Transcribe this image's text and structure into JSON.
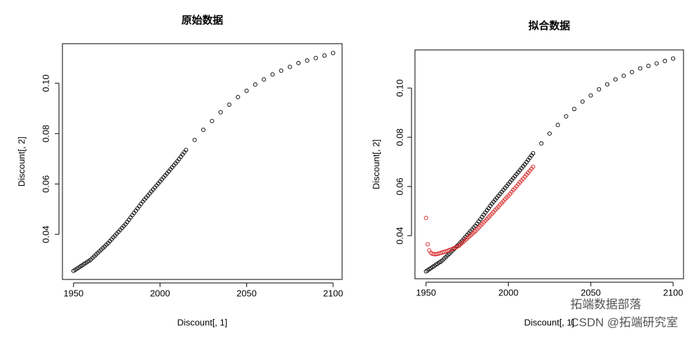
{
  "chart_data": [
    {
      "type": "scatter",
      "title": "原始数据",
      "x_label": "Discount[, 1]",
      "y_label": "Discount[, 2]",
      "xlim": [
        1943.6,
        2105.2
      ],
      "ylim": [
        0.0221,
        0.1157
      ],
      "xticks": [
        1950,
        2000,
        2050,
        2100
      ],
      "yticks": [
        0.04,
        0.06,
        0.08,
        {
          "value": 0.1,
          "label": "0.10"
        }
      ],
      "series": [
        {
          "color": "#000000",
          "x": [
            1950,
            1951,
            1952,
            1953,
            1954,
            1955,
            1956,
            1957,
            1958,
            1959,
            1960,
            1961,
            1962,
            1963,
            1964,
            1965,
            1966,
            1967,
            1968,
            1969,
            1970,
            1971,
            1972,
            1973,
            1974,
            1975,
            1976,
            1977,
            1978,
            1979,
            1980,
            1981,
            1982,
            1983,
            1984,
            1985,
            1986,
            1987,
            1988,
            1989,
            1990,
            1991,
            1992,
            1993,
            1994,
            1995,
            1996,
            1997,
            1998,
            1999,
            2000,
            2001,
            2002,
            2003,
            2004,
            2005,
            2006,
            2007,
            2008,
            2009,
            2010,
            2011,
            2012,
            2013,
            2014,
            2015,
            2020,
            2025,
            2030,
            2035,
            2040,
            2045,
            2050,
            2055,
            2060,
            2065,
            2070,
            2075,
            2080,
            2085,
            2090,
            2095,
            2100
          ],
          "values": [
            0.0255,
            0.0259,
            0.0264,
            0.0268,
            0.0273,
            0.0277,
            0.0282,
            0.0286,
            0.0291,
            0.0295,
            0.03,
            0.0307,
            0.0313,
            0.032,
            0.0326,
            0.0333,
            0.0339,
            0.0346,
            0.0352,
            0.0359,
            0.0365,
            0.0373,
            0.038,
            0.0388,
            0.0395,
            0.0403,
            0.041,
            0.0418,
            0.0425,
            0.0433,
            0.044,
            0.0449,
            0.0458,
            0.0467,
            0.0476,
            0.0485,
            0.0494,
            0.0503,
            0.0512,
            0.0521,
            0.053,
            0.0538,
            0.0546,
            0.0554,
            0.0562,
            0.057,
            0.0578,
            0.0586,
            0.0594,
            0.0602,
            0.061,
            0.0618,
            0.0626,
            0.0634,
            0.0642,
            0.065,
            0.0658,
            0.0666,
            0.0674,
            0.0682,
            0.069,
            0.0699,
            0.0708,
            0.0717,
            0.0726,
            0.0735,
            0.0775,
            0.0815,
            0.085,
            0.0885,
            0.0915,
            0.0945,
            0.097,
            0.0995,
            0.1015,
            0.1035,
            0.105,
            0.1065,
            0.108,
            0.109,
            0.11,
            0.111,
            0.112
          ]
        }
      ]
    },
    {
      "type": "scatter",
      "title": "拟合数据",
      "x_label": "Discount[, 1]",
      "y_label": "Discount[, 2]",
      "xlim": [
        1943.3,
        2106.3
      ],
      "ylim": [
        0.0225,
        0.1155
      ],
      "xticks": [
        1950,
        2000,
        2050,
        2100
      ],
      "yticks": [
        0.04,
        0.06,
        0.08,
        {
          "value": 0.1,
          "label": "0.10"
        }
      ],
      "series": [
        {
          "color": "#000000",
          "x": [
            1950,
            1951,
            1952,
            1953,
            1954,
            1955,
            1956,
            1957,
            1958,
            1959,
            1960,
            1961,
            1962,
            1963,
            1964,
            1965,
            1966,
            1967,
            1968,
            1969,
            1970,
            1971,
            1972,
            1973,
            1974,
            1975,
            1976,
            1977,
            1978,
            1979,
            1980,
            1981,
            1982,
            1983,
            1984,
            1985,
            1986,
            1987,
            1988,
            1989,
            1990,
            1991,
            1992,
            1993,
            1994,
            1995,
            1996,
            1997,
            1998,
            1999,
            2000,
            2001,
            2002,
            2003,
            2004,
            2005,
            2006,
            2007,
            2008,
            2009,
            2010,
            2011,
            2012,
            2013,
            2014,
            2015,
            2020,
            2025,
            2030,
            2035,
            2040,
            2045,
            2050,
            2055,
            2060,
            2065,
            2070,
            2075,
            2080,
            2085,
            2090,
            2095,
            2100
          ],
          "values": [
            0.0255,
            0.0259,
            0.0264,
            0.0268,
            0.0273,
            0.0277,
            0.0282,
            0.0286,
            0.0291,
            0.0295,
            0.03,
            0.0307,
            0.0313,
            0.032,
            0.0326,
            0.0333,
            0.0339,
            0.0346,
            0.0352,
            0.0359,
            0.0365,
            0.0373,
            0.038,
            0.0388,
            0.0395,
            0.0403,
            0.041,
            0.0418,
            0.0425,
            0.0433,
            0.044,
            0.0449,
            0.0458,
            0.0467,
            0.0476,
            0.0485,
            0.0494,
            0.0503,
            0.0512,
            0.0521,
            0.053,
            0.0538,
            0.0546,
            0.0554,
            0.0562,
            0.057,
            0.0578,
            0.0586,
            0.0594,
            0.0602,
            0.061,
            0.0618,
            0.0626,
            0.0634,
            0.0642,
            0.065,
            0.0658,
            0.0666,
            0.0674,
            0.0682,
            0.069,
            0.0699,
            0.0708,
            0.0717,
            0.0726,
            0.0735,
            0.0775,
            0.0815,
            0.085,
            0.0885,
            0.0915,
            0.0945,
            0.097,
            0.0995,
            0.1015,
            0.1035,
            0.105,
            0.1065,
            0.108,
            0.109,
            0.11,
            0.111,
            0.112
          ]
        },
        {
          "color": "#d62020",
          "x": [
            1950,
            1951,
            1952,
            1953,
            1954,
            1955,
            1956,
            1957,
            1958,
            1959,
            1960,
            1961,
            1962,
            1963,
            1964,
            1965,
            1966,
            1967,
            1968,
            1969,
            1970,
            1971,
            1972,
            1973,
            1974,
            1975,
            1976,
            1977,
            1978,
            1979,
            1980,
            1981,
            1982,
            1983,
            1984,
            1985,
            1986,
            1987,
            1988,
            1989,
            1990,
            1991,
            1992,
            1993,
            1994,
            1995,
            1996,
            1997,
            1998,
            1999,
            2000,
            2001,
            2002,
            2003,
            2004,
            2005,
            2006,
            2007,
            2008,
            2009,
            2010,
            2011,
            2012,
            2013,
            2014,
            2015
          ],
          "values": [
            0.0472,
            0.0365,
            0.034,
            0.033,
            0.0326,
            0.0325,
            0.0325,
            0.0326,
            0.0328,
            0.033,
            0.0332,
            0.0334,
            0.0336,
            0.0338,
            0.0341,
            0.0343,
            0.0346,
            0.0349,
            0.0352,
            0.0356,
            0.0359,
            0.0365,
            0.0371,
            0.0377,
            0.0383,
            0.0389,
            0.0395,
            0.0401,
            0.0407,
            0.0413,
            0.0419,
            0.0426,
            0.0433,
            0.044,
            0.0447,
            0.0454,
            0.0461,
            0.0468,
            0.0475,
            0.0482,
            0.0489,
            0.0496,
            0.0504,
            0.0511,
            0.0518,
            0.0526,
            0.0533,
            0.054,
            0.0548,
            0.0555,
            0.0562,
            0.057,
            0.0578,
            0.0586,
            0.0593,
            0.0601,
            0.0609,
            0.0617,
            0.0624,
            0.0632,
            0.064,
            0.0648,
            0.0656,
            0.0664,
            0.0672,
            0.068
          ]
        }
      ]
    }
  ],
  "watermark": {
    "line1": "拓端数据部落",
    "line2": "CSDN @拓端研究室"
  }
}
